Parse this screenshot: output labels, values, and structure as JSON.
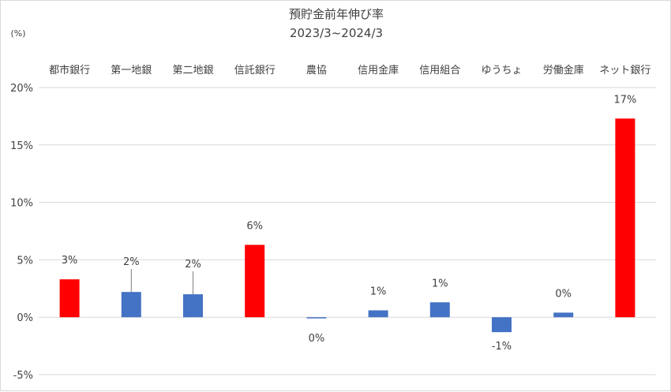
{
  "chart_data": {
    "type": "bar",
    "title": "預貯金前年伸び率",
    "subtitle": "2023/3~2024/3",
    "ylabel": "(%)",
    "xlabel": "",
    "ylim": [
      -5,
      20
    ],
    "yticks": [
      20,
      15,
      10,
      5,
      0,
      -5
    ],
    "yticklabels": [
      "20%",
      "15%",
      "10%",
      "5%",
      "0%",
      "-5%"
    ],
    "grid": true,
    "category_position": "top",
    "categories": [
      "都市銀行",
      "第一地銀",
      "第二地銀",
      "信託銀行",
      "農協",
      "信用金庫",
      "信用組合",
      "ゆうちょ",
      "労働金庫",
      "ネット銀行"
    ],
    "values": [
      3.3,
      2.2,
      2.0,
      6.3,
      -0.1,
      0.6,
      1.3,
      -1.3,
      0.4,
      17.3
    ],
    "data_labels": [
      "3%",
      "2%",
      "2%",
      "6%",
      "0%",
      "1%",
      "1%",
      "-1%",
      "0%",
      "17%"
    ],
    "highlight": [
      true,
      false,
      false,
      true,
      false,
      false,
      false,
      false,
      false,
      true
    ],
    "colors": {
      "highlight": "#ff0000",
      "normal": "#4472c4",
      "grid": "#d9d9d9",
      "text": "#404040"
    }
  }
}
